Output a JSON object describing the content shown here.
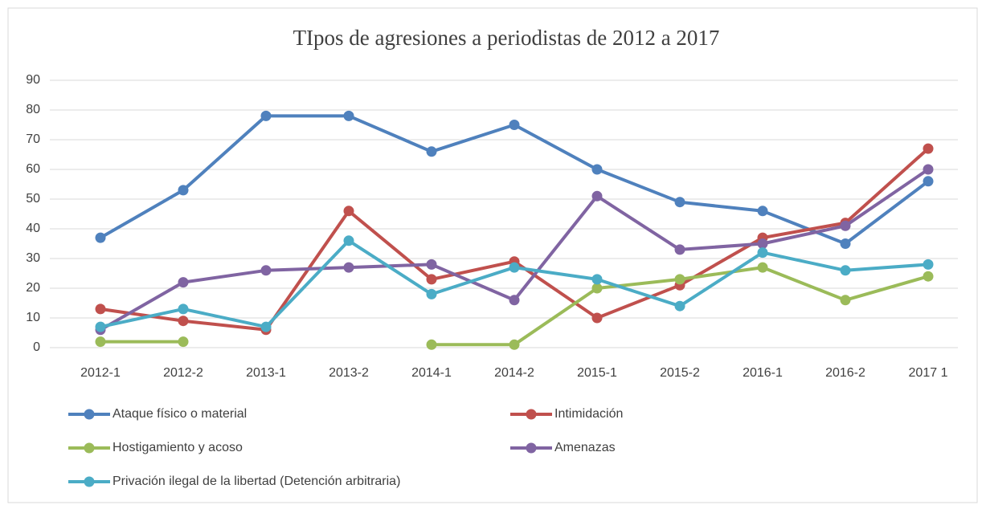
{
  "chart_data": {
    "type": "line",
    "title": "TIpos de agresiones a periodistas de 2012 a 2017",
    "categories": [
      "2012-1",
      "2012-2",
      "2013-1",
      "2013-2",
      "2014-1",
      "2014-2",
      "2015-1",
      "2015-2",
      "2016-1",
      "2016-2",
      "2017 1"
    ],
    "series": [
      {
        "name": "Ataque físico o material",
        "color": "#4f81bd",
        "values": [
          37,
          53,
          78,
          78,
          66,
          75,
          60,
          49,
          46,
          35,
          56
        ]
      },
      {
        "name": "Intimidación",
        "color": "#c0504d",
        "values": [
          13,
          9,
          6,
          46,
          23,
          29,
          10,
          21,
          37,
          42,
          67
        ]
      },
      {
        "name": "Hostigamiento y acoso",
        "color": "#9bbb59",
        "values": [
          2,
          2,
          null,
          null,
          1,
          1,
          20,
          23,
          27,
          16,
          24
        ]
      },
      {
        "name": "Amenazas",
        "color": "#8064a2",
        "values": [
          6,
          22,
          26,
          27,
          28,
          16,
          51,
          33,
          35,
          41,
          60
        ]
      },
      {
        "name": "Privación ilegal de la libertad (Detención arbitraria)",
        "color": "#4bacc6",
        "values": [
          7,
          13,
          7,
          36,
          18,
          27,
          23,
          14,
          32,
          26,
          28
        ]
      }
    ],
    "ylim": [
      0,
      90
    ],
    "yticks": [
      0,
      10,
      20,
      30,
      40,
      50,
      60,
      70,
      80,
      90
    ],
    "grid": true,
    "legend": "bottom"
  }
}
